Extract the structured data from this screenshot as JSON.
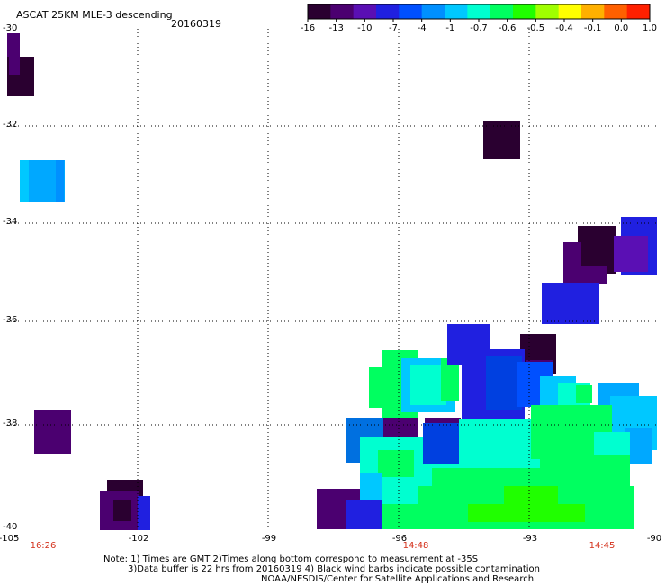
{
  "header": {
    "title": "ASCAT 25KM MLE-3 descending",
    "date": "20160319"
  },
  "colorbar": {
    "labels": [
      "-16",
      "-13",
      "-10",
      "-7",
      "-4",
      "-1",
      "-0.7",
      "-0.6",
      "-0.5",
      "-0.4",
      "-0.1",
      "0.0",
      "1.0"
    ],
    "colors": [
      "#2a0030",
      "#4b0070",
      "#5a0fb4",
      "#2020e0",
      "#0050ff",
      "#0090ff",
      "#00c8ff",
      "#00ffd0",
      "#00ff60",
      "#20ff00",
      "#a0ff00",
      "#ffff00",
      "#ffb000",
      "#ff6000",
      "#ff2000"
    ]
  },
  "axes": {
    "lat_labels": [
      "-30",
      "-32",
      "-34",
      "-36",
      "-38",
      "-40"
    ],
    "lon_labels": [
      "-105",
      "-102",
      "-99",
      "-96",
      "-93",
      "-90"
    ],
    "time_labels": [
      "16:26",
      "14:48",
      "14:45"
    ]
  },
  "notes": {
    "line1": "Note: 1) Times are GMT 2)Times along bottom correspond to measurement at -35S",
    "line2": "3)Data buffer is 22 hrs from 20160319 4) Black wind barbs indicate possible contamination",
    "line3": "NOAA/NESDIS/Center for Satellite Applications and Research"
  }
}
